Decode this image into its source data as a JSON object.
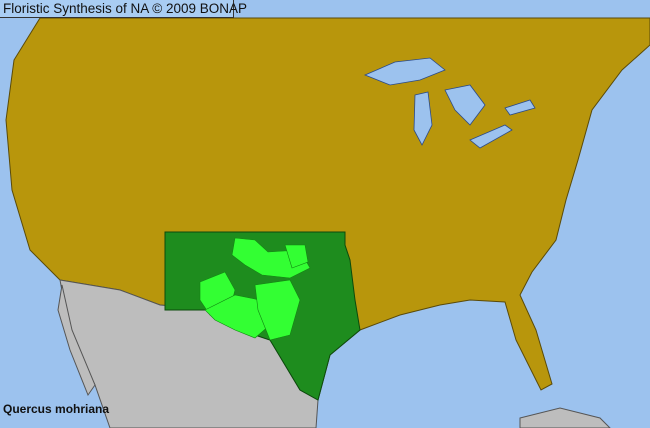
{
  "title": "Floristic Synthesis of NA © 2009 BONAP",
  "species": "Quercus mohriana",
  "colors": {
    "water": "#9cc2ee",
    "not_present": "#b8960c",
    "outside_region": "#bdbdbd",
    "present_state": "#1e8c1e",
    "present_county": "#33ff33",
    "county_lines": "#5a4a08"
  }
}
